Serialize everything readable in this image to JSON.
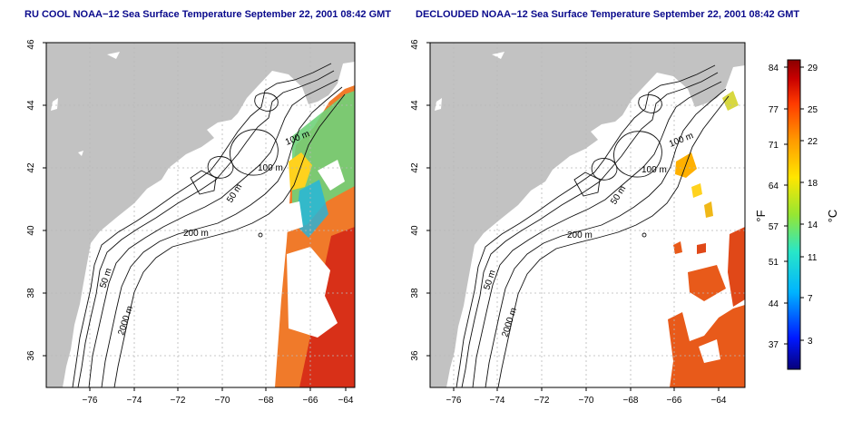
{
  "panels": [
    {
      "title": "RU COOL NOAA−12 Sea Surface Temperature September 22, 2001 08:42 GMT"
    },
    {
      "title": "DECLOUDED NOAA−12 Sea Surface Temperature September 22, 2001 08:42 GMT"
    }
  ],
  "axes": {
    "x_ticks": [
      "−76",
      "−74",
      "−72",
      "−70",
      "−68",
      "−66",
      "−64"
    ],
    "y_ticks": [
      "36",
      "38",
      "40",
      "42",
      "44",
      "46"
    ]
  },
  "contour_labels": {
    "m100a": "100 m",
    "m100b": "100 m",
    "m50": "50 m",
    "m200": "200 m",
    "m50b": "50 m",
    "m2000": "2000 m"
  },
  "colorbar": {
    "left_unit": "°F",
    "right_unit": "°C",
    "f_ticks": [
      "84",
      "77",
      "71",
      "64",
      "57",
      "51",
      "44",
      "37"
    ],
    "c_ticks": [
      "29",
      "25",
      "22",
      "18",
      "14",
      "11",
      "7",
      "3"
    ],
    "colors": [
      "#08007a",
      "#0018ff",
      "#00b4ff",
      "#28e6c8",
      "#96e632",
      "#ffe600",
      "#ff9a00",
      "#ff3a00",
      "#c80000",
      "#8a0000"
    ]
  },
  "colors": {
    "land": "#c2c2c2",
    "contour": "#111111",
    "grid": "#b8b8b8",
    "title": "#0a0a8c"
  }
}
